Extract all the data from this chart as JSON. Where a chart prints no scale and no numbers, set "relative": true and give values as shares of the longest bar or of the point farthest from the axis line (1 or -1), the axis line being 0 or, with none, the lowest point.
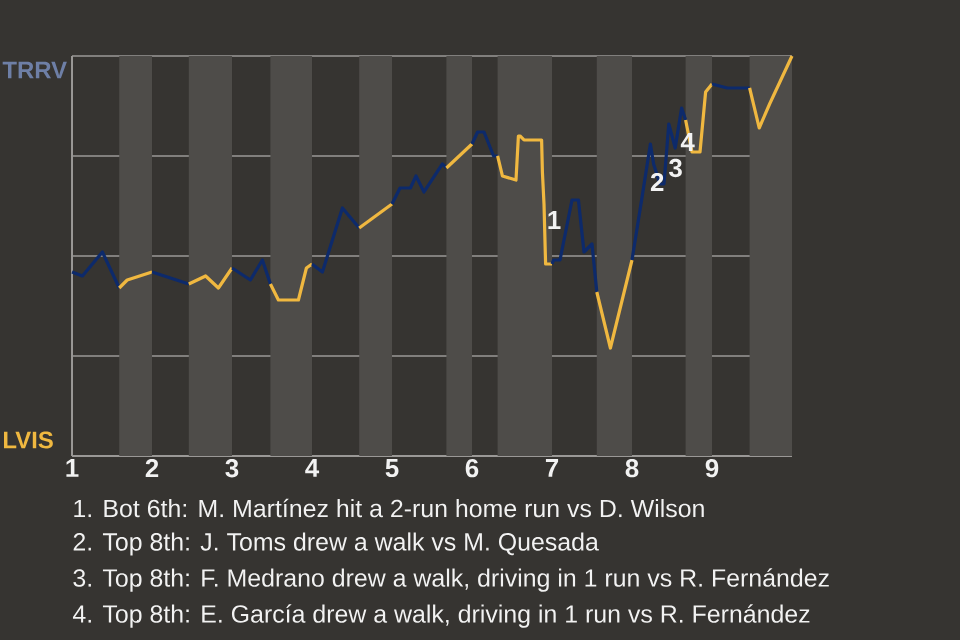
{
  "chart_data": {
    "type": "line",
    "relative": true,
    "grid": "y",
    "marker": "none",
    "line_style": "solid",
    "xlim": [
      1,
      10
    ],
    "xticks": [
      1,
      2,
      3,
      4,
      5,
      6,
      7,
      8,
      9
    ],
    "bands": [
      {
        "axis": "x",
        "from": 1.59,
        "to": 2,
        "color": "#4e4c49"
      },
      {
        "axis": "x",
        "from": 2.46,
        "to": 3,
        "color": "#4e4c49"
      },
      {
        "axis": "x",
        "from": 3.48,
        "to": 4,
        "color": "#4e4c49"
      },
      {
        "axis": "x",
        "from": 4.59,
        "to": 5,
        "color": "#4e4c49"
      },
      {
        "axis": "x",
        "from": 5.68,
        "to": 6,
        "color": "#4e4c49"
      },
      {
        "axis": "x",
        "from": 6.32,
        "to": 7,
        "color": "#4e4c49"
      },
      {
        "axis": "x",
        "from": 7.56,
        "to": 8,
        "color": "#4e4c49"
      },
      {
        "axis": "x",
        "from": 8.67,
        "to": 9,
        "color": "#4e4c49"
      },
      {
        "axis": "x",
        "from": 9.47,
        "to": 10,
        "color": "#4e4c49"
      }
    ],
    "series": [
      {
        "color": "#0d2a6b",
        "x": [
          1,
          1.13,
          1.38,
          1.59
        ],
        "values": [
          0.46,
          0.45,
          0.51,
          0.42
        ]
      },
      {
        "color": "#f0b840",
        "x": [
          1.59,
          1.69,
          2
        ],
        "values": [
          0.42,
          0.44,
          0.46
        ]
      },
      {
        "color": "#0d2a6b",
        "x": [
          2,
          2.46
        ],
        "values": [
          0.46,
          0.43
        ]
      },
      {
        "color": "#f0b840",
        "x": [
          2.46,
          2.67,
          2.83,
          3
        ],
        "values": [
          0.43,
          0.45,
          0.42,
          0.47
        ]
      },
      {
        "color": "#0d2a6b",
        "x": [
          3,
          3.23,
          3.38,
          3.48
        ],
        "values": [
          0.47,
          0.44,
          0.49,
          0.43
        ]
      },
      {
        "color": "#f0b840",
        "x": [
          3.48,
          3.58,
          3.83,
          3.93,
          4
        ],
        "values": [
          0.43,
          0.39,
          0.39,
          0.47,
          0.48
        ]
      },
      {
        "color": "#0d2a6b",
        "x": [
          4,
          4.13,
          4.38,
          4.59
        ],
        "values": [
          0.48,
          0.46,
          0.62,
          0.57
        ]
      },
      {
        "color": "#f0b840",
        "x": [
          4.59,
          5
        ],
        "values": [
          0.57,
          0.63
        ]
      },
      {
        "color": "#0d2a6b",
        "x": [
          5,
          5.1,
          5.23,
          5.3,
          5.4,
          5.63,
          5.68
        ],
        "values": [
          0.63,
          0.67,
          0.67,
          0.7,
          0.66,
          0.73,
          0.72
        ]
      },
      {
        "color": "#f0b840",
        "x": [
          5.68,
          6
        ],
        "values": [
          0.72,
          0.78
        ]
      },
      {
        "color": "#0d2a6b",
        "x": [
          6,
          6.07,
          6.15,
          6.27,
          6.32
        ],
        "values": [
          0.78,
          0.81,
          0.81,
          0.75,
          0.75
        ]
      },
      {
        "color": "#f0b840",
        "x": [
          6.32,
          6.38,
          6.55,
          6.58,
          6.6,
          6.65,
          6.87,
          6.88,
          6.9,
          6.92,
          7
        ],
        "values": [
          0.75,
          0.7,
          0.69,
          0.8,
          0.8,
          0.79,
          0.79,
          0.71,
          0.63,
          0.48,
          0.48
        ]
      },
      {
        "color": "#0d2a6b",
        "x": [
          7,
          7.02,
          7.1,
          7.25,
          7.33,
          7.4,
          7.5,
          7.56
        ],
        "values": [
          0.48,
          0.49,
          0.49,
          0.64,
          0.64,
          0.51,
          0.53,
          0.41
        ]
      },
      {
        "color": "#f0b840",
        "x": [
          7.56,
          7.73,
          8
        ],
        "values": [
          0.41,
          0.27,
          0.49
        ]
      },
      {
        "color": "#0d2a6b",
        "x": [
          8,
          8.12,
          8.23,
          8.27,
          8.35,
          8.4,
          8.46,
          8.54,
          8.62,
          8.67
        ],
        "values": [
          0.49,
          0.64,
          0.78,
          0.73,
          0.68,
          0.68,
          0.83,
          0.77,
          0.87,
          0.84
        ]
      },
      {
        "color": "#f0b840",
        "x": [
          8.67,
          8.75,
          8.85,
          8.92,
          9
        ],
        "values": [
          0.84,
          0.76,
          0.76,
          0.91,
          0.93
        ]
      },
      {
        "color": "#0d2a6b",
        "x": [
          9,
          9.19,
          9.47
        ],
        "values": [
          0.93,
          0.92,
          0.92
        ]
      },
      {
        "color": "#f0b840",
        "x": [
          9.47,
          9.59,
          9.72,
          10
        ],
        "values": [
          0.92,
          0.82,
          0.88,
          1
        ]
      }
    ],
    "annotations": [
      "TRRV",
      "LVIS",
      {
        "text": "1",
        "x": 7,
        "y": 0.59
      },
      {
        "text": "2",
        "x": 8.29,
        "y": 0.685
      },
      {
        "text": "3",
        "x": 8.52,
        "y": 0.72
      },
      {
        "text": "4",
        "x": 8.67,
        "y": 0.785
      },
      "1. Bot 6th: M. Martínez hit a 2-run home run vs D. Wilson",
      "2. Top 8th: J. Toms drew a walk vs M. Quesada",
      "3. Top 8th: F. Medrano drew a walk, driving in 1 run vs R. Fernández",
      "4. Top 8th: E. García drew a walk, driving in 1 run vs R. Fernández"
    ]
  }
}
